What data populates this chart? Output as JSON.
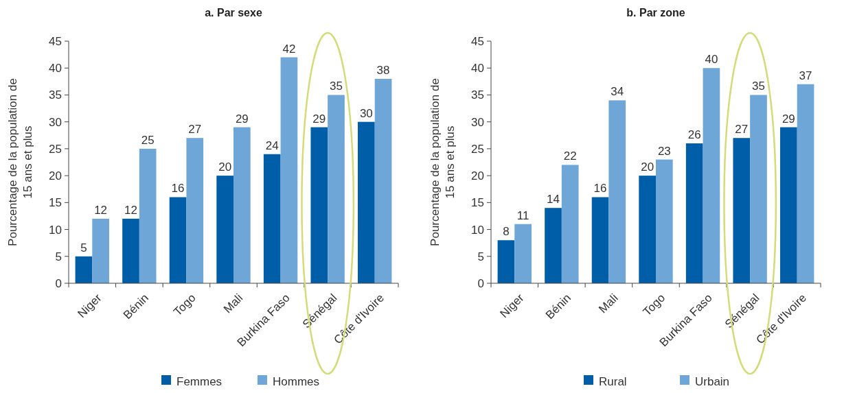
{
  "chart_data": [
    {
      "type": "bar",
      "title": "a. Par sexe",
      "ylabel": "Pourcentage de la population de 15 ans et plus",
      "categories": [
        "Niger",
        "Bénin",
        "Togo",
        "Mali",
        "Burkina Faso",
        "Sénégal",
        "Côte d'Ivoire"
      ],
      "series": [
        {
          "name": "Femmes",
          "color": "#005da8",
          "values": [
            5,
            12,
            16,
            20,
            24,
            29,
            30
          ]
        },
        {
          "name": "Hommes",
          "color": "#6fa6d8",
          "values": [
            12,
            25,
            27,
            29,
            42,
            35,
            38
          ]
        }
      ],
      "ylim": [
        0,
        45
      ],
      "yticks": [
        0,
        5,
        10,
        15,
        20,
        25,
        30,
        35,
        40,
        45
      ],
      "data_labels": true,
      "legend": "bottom",
      "grid": false
    },
    {
      "type": "bar",
      "title": "b. Par zone",
      "ylabel": "Pourcentage de la population de 15 ans et plus",
      "categories": [
        "Niger",
        "Bénin",
        "Mali",
        "Togo",
        "Burkina Faso",
        "Sénégal",
        "Côte d'Ivoire"
      ],
      "series": [
        {
          "name": "Rural",
          "color": "#005da8",
          "values": [
            8,
            14,
            16,
            20,
            26,
            27,
            29
          ]
        },
        {
          "name": "Urbain",
          "color": "#6fa6d8",
          "values": [
            11,
            22,
            34,
            23,
            40,
            35,
            37
          ]
        }
      ],
      "ylim": [
        0,
        45
      ],
      "yticks": [
        0,
        5,
        10,
        15,
        20,
        25,
        30,
        35,
        40,
        45
      ],
      "data_labels": true,
      "legend": "bottom",
      "grid": false
    }
  ]
}
